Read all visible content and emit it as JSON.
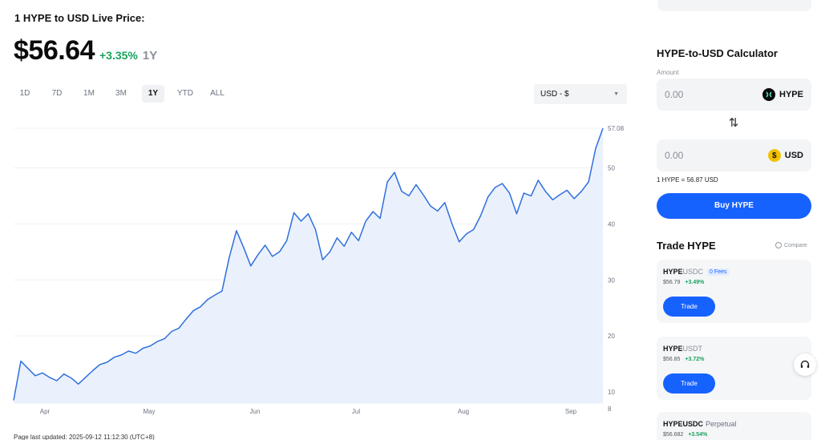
{
  "header": {
    "title": "1 HYPE to USD Live Price:",
    "price": "$56.64",
    "change": "+3.35%",
    "period": "1Y"
  },
  "ranges": [
    {
      "label": "1D",
      "active": false
    },
    {
      "label": "7D",
      "active": false
    },
    {
      "label": "1M",
      "active": false
    },
    {
      "label": "3M",
      "active": false
    },
    {
      "label": "1Y",
      "active": true
    },
    {
      "label": "YTD",
      "active": false
    },
    {
      "label": "ALL",
      "active": false
    }
  ],
  "currency_select": {
    "value": "USD - $"
  },
  "chart_data": {
    "type": "area",
    "x_labels": [
      "Apr",
      "May",
      "Jun",
      "Jul",
      "Aug",
      "Sep"
    ],
    "y_ticks": [
      "57.08",
      "50",
      "40",
      "30",
      "20",
      "10",
      "8"
    ],
    "ylim": [
      8,
      57.08
    ],
    "line_color": "#2f6fdc",
    "fill_color": "#eaf1fd",
    "values": [
      8.5,
      15.5,
      14.2,
      12.9,
      13.4,
      12.6,
      12.0,
      13.2,
      12.5,
      11.4,
      12.6,
      13.8,
      14.9,
      15.3,
      16.2,
      16.6,
      17.3,
      16.9,
      17.8,
      18.2,
      19.0,
      19.5,
      20.8,
      21.4,
      23.0,
      24.5,
      25.2,
      26.5,
      27.3,
      28.0,
      34.0,
      38.8,
      35.8,
      32.5,
      34.5,
      36.2,
      34.2,
      35.0,
      37.0,
      42.0,
      40.5,
      41.8,
      39.0,
      33.6,
      35.0,
      37.5,
      36.0,
      38.5,
      37.0,
      40.5,
      42.2,
      41.0,
      47.5,
      49.2,
      45.8,
      45.0,
      47.0,
      45.2,
      43.2,
      42.3,
      43.8,
      40.0,
      36.8,
      38.2,
      39.0,
      41.5,
      44.8,
      46.5,
      47.2,
      45.5,
      41.8,
      45.5,
      45.0,
      47.8,
      45.8,
      44.3,
      45.2,
      46.0,
      44.5,
      45.8,
      47.5,
      53.5,
      57.08
    ]
  },
  "updated_text": "Page last updated: 2025-09-12 11:12:30 (UTC+8)",
  "calculator": {
    "title": "HYPE-to-USD Calculator",
    "amount_label": "Amount",
    "from_value": "0.00",
    "from_coin": "HYPE",
    "to_value": "0.00",
    "to_coin": "USD",
    "rate": "1 HYPE = 56.87 USD",
    "buy_label": "Buy HYPE"
  },
  "trade": {
    "title": "Trade HYPE",
    "compare_label": "Compare",
    "pairs": [
      {
        "base": "HYPE",
        "quote": "USDC",
        "suffix": "",
        "badge": "0 Fees",
        "price": "$56.79",
        "change": "+3.49%",
        "button": "Trade"
      },
      {
        "base": "HYPE",
        "quote": "USDT",
        "suffix": "",
        "badge": "",
        "price": "$56.85",
        "change": "+3.72%",
        "button": "Trade"
      },
      {
        "base": "HYPEUSDC",
        "quote": "",
        "suffix": "Perpetual",
        "badge": "",
        "price": "$56.682",
        "change": "+3.54%",
        "button": ""
      }
    ]
  }
}
